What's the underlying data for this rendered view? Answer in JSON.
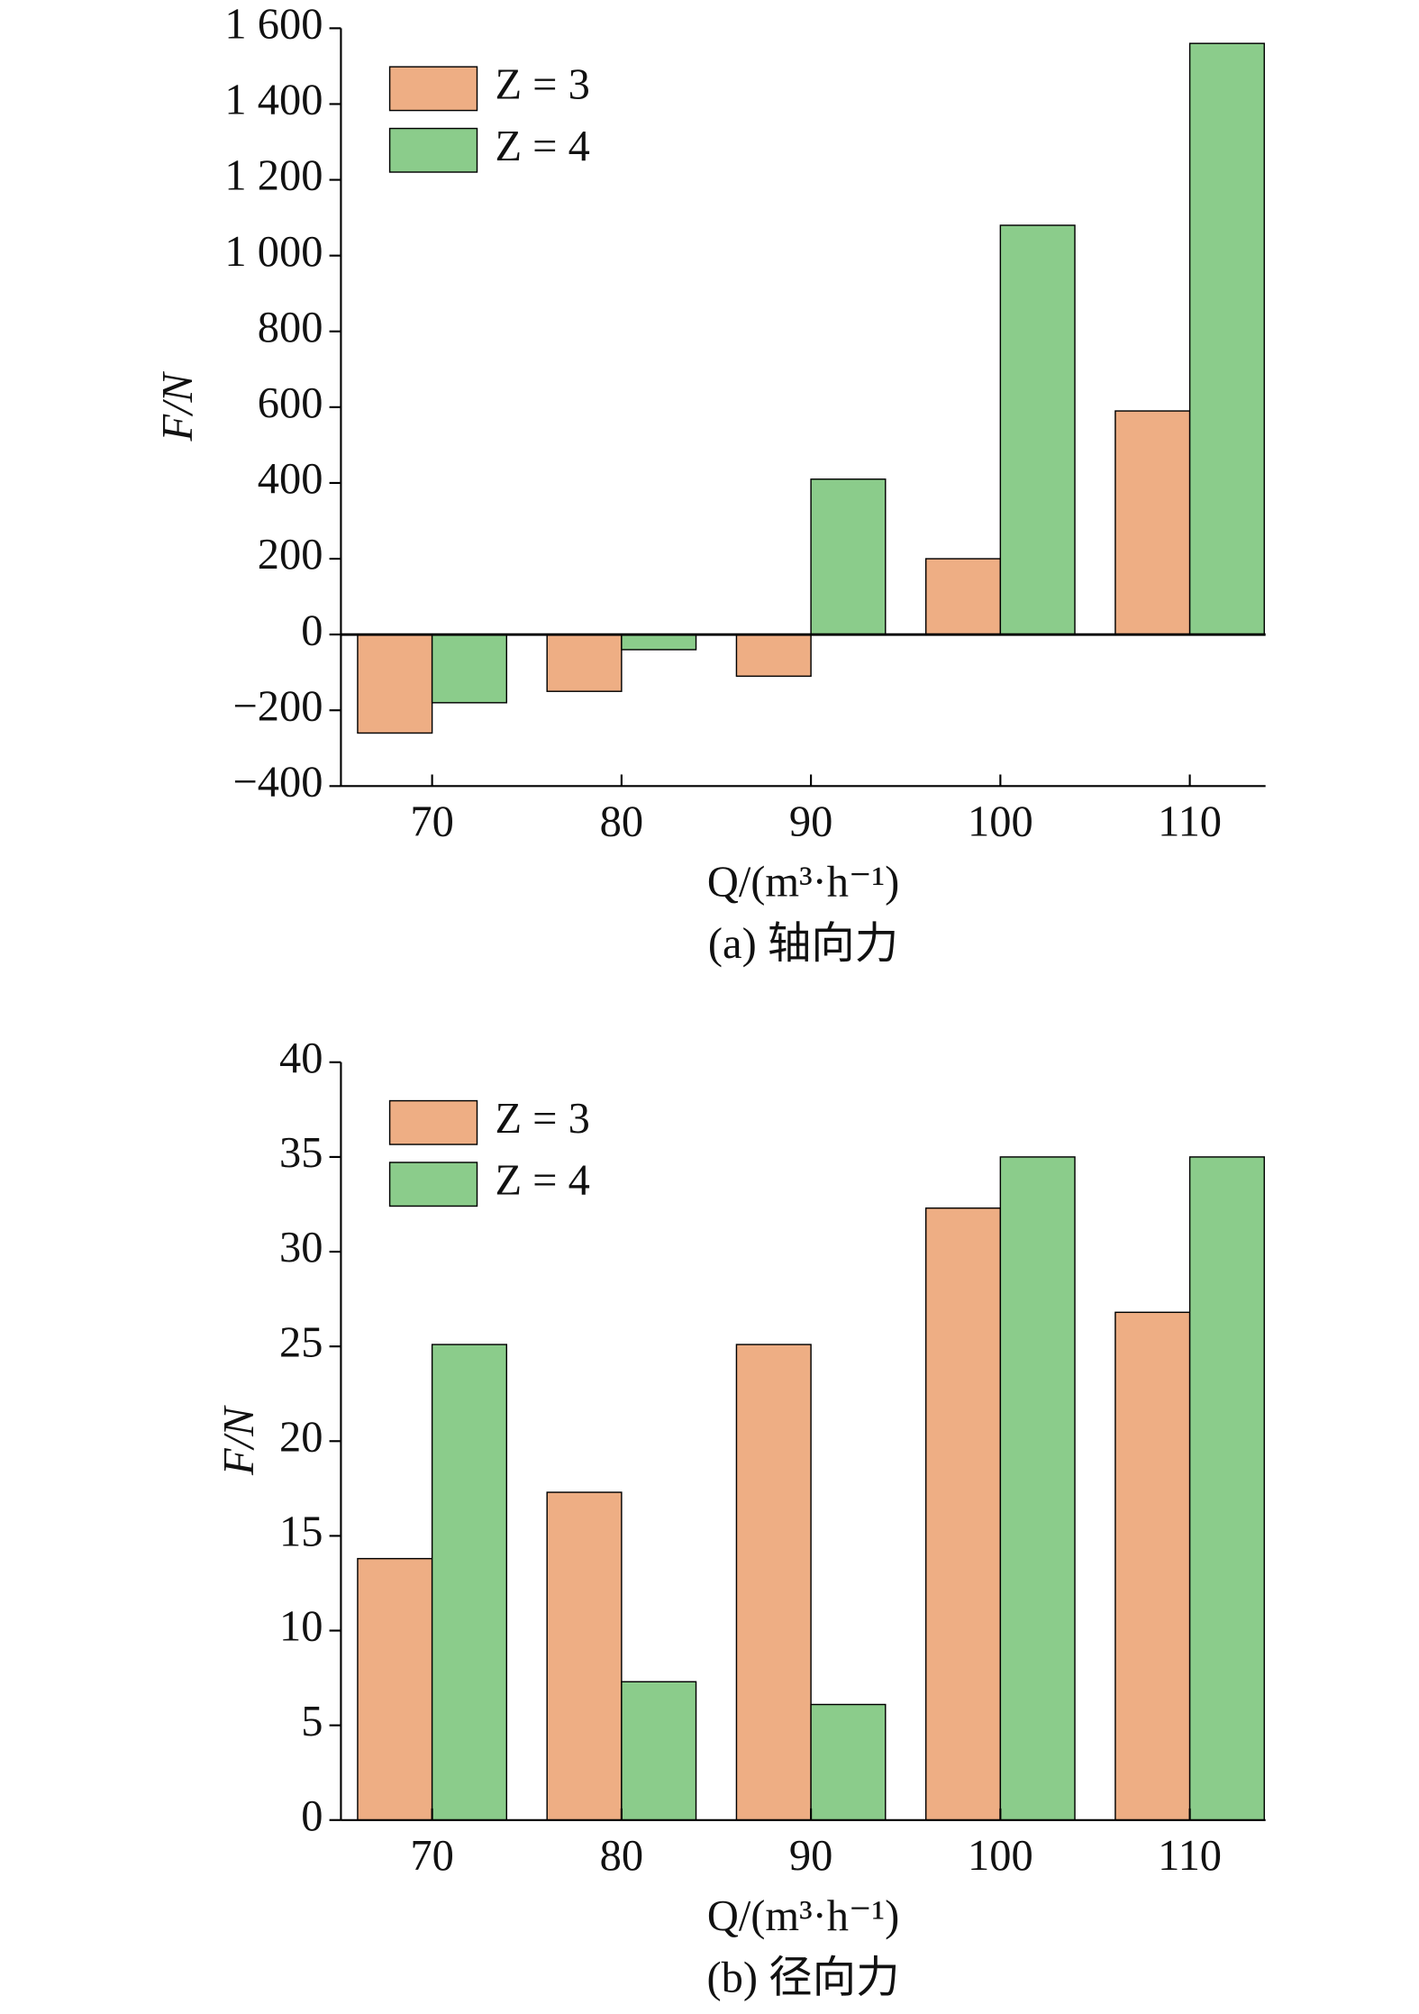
{
  "chart_data": [
    {
      "type": "bar",
      "title": "(a) 轴向力",
      "xlabel": "Q/(m³·h⁻¹)",
      "ylabel": "F/N",
      "categories": [
        "70",
        "80",
        "90",
        "100",
        "110"
      ],
      "series": [
        {
          "name": "Z = 3",
          "color": "#eeae84",
          "values": [
            -260,
            -150,
            -110,
            200,
            590
          ]
        },
        {
          "name": "Z = 4",
          "color": "#8bcc8b",
          "values": [
            -180,
            -40,
            410,
            1080,
            1560
          ]
        }
      ],
      "ylim": [
        -400,
        1600
      ],
      "yticks": [
        {
          "value": -400,
          "label": "−400"
        },
        {
          "value": -200,
          "label": "−200"
        },
        0,
        200,
        400,
        600,
        800,
        {
          "value": 1000,
          "label": "1 000"
        },
        {
          "value": 1200,
          "label": "1 200"
        },
        {
          "value": 1400,
          "label": "1 400"
        },
        {
          "value": 1600,
          "label": "1 600"
        }
      ],
      "legend": "upper left"
    },
    {
      "type": "bar",
      "title": "(b) 径向力",
      "xlabel": "Q/(m³·h⁻¹)",
      "ylabel": "F/N",
      "categories": [
        "70",
        "80",
        "90",
        "100",
        "110"
      ],
      "series": [
        {
          "name": "Z = 3",
          "color": "#eeae84",
          "values": [
            13.8,
            17.3,
            25.1,
            32.3,
            26.8
          ]
        },
        {
          "name": "Z = 4",
          "color": "#8bcc8b",
          "values": [
            25.1,
            7.3,
            6.1,
            35.0,
            35.0
          ]
        }
      ],
      "ylim": [
        0,
        40
      ],
      "yticks": [
        0,
        5,
        10,
        15,
        20,
        25,
        30,
        35,
        40
      ],
      "legend": "upper left"
    }
  ]
}
